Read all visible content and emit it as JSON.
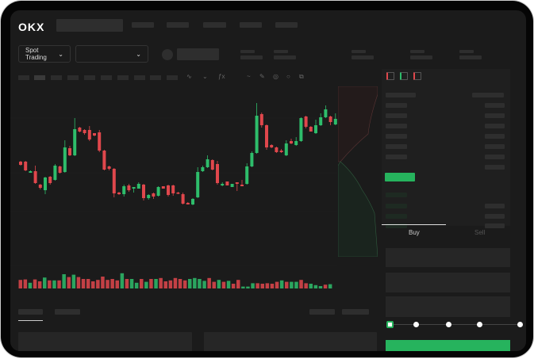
{
  "header": {
    "logo": "OKX"
  },
  "market_selector": {
    "label": "Spot Trading",
    "pair_value": ""
  },
  "chart_toolbar": {
    "icons": [
      "indicator-icon",
      "line-type-icon",
      "fx-icon",
      "trend-line-icon",
      "pencil-icon",
      "target-icon",
      "circle-icon",
      "settings-icon"
    ]
  },
  "orderbook": {
    "view_icons": [
      "both-sides-icon",
      "bids-only-icon",
      "asks-only-icon"
    ]
  },
  "trade_form": {
    "tabs": [
      {
        "label": "Buy",
        "active": true
      },
      {
        "label": "Sell",
        "active": false
      }
    ],
    "slider_percent": 0,
    "slider_stops": [
      0,
      25,
      50,
      75,
      100
    ]
  },
  "colors": {
    "up": "#2ebd6b",
    "down": "#e0474c",
    "background": "#1b1b1b",
    "buy_button": "#26b35d"
  },
  "chart_data": {
    "type": "candlestick",
    "candles_ohlc": [
      [
        167,
        168,
        162,
        163
      ],
      [
        167,
        168,
        155,
        156
      ],
      [
        153,
        156,
        153,
        155
      ],
      [
        155,
        162,
        139,
        140
      ],
      [
        138,
        139,
        132,
        134
      ],
      [
        131,
        148,
        126,
        147
      ],
      [
        148,
        149,
        138,
        140
      ],
      [
        144,
        164,
        143,
        162
      ],
      [
        161,
        162,
        152,
        153
      ],
      [
        154,
        194,
        153,
        185
      ],
      [
        184,
        187,
        174,
        175
      ],
      [
        175,
        222,
        174,
        208
      ],
      [
        210,
        211,
        204,
        205
      ],
      [
        207,
        208,
        201,
        203
      ],
      [
        207,
        212,
        193,
        195
      ],
      [
        203,
        203,
        199,
        200
      ],
      [
        204,
        207,
        179,
        181
      ],
      [
        181,
        182,
        156,
        157
      ],
      [
        161,
        162,
        156,
        158
      ],
      [
        158,
        159,
        122,
        127
      ],
      [
        128,
        129,
        125,
        126
      ],
      [
        126,
        138,
        123,
        136
      ],
      [
        137,
        139,
        129,
        131
      ],
      [
        133,
        135,
        128,
        135
      ],
      [
        133,
        141,
        133,
        139
      ],
      [
        138,
        139,
        118,
        121
      ],
      [
        121,
        126,
        119,
        125
      ],
      [
        127,
        128,
        120,
        123
      ],
      [
        124,
        136,
        123,
        135
      ],
      [
        136,
        136,
        133,
        133
      ],
      [
        137,
        138,
        123,
        125
      ],
      [
        137,
        138,
        124,
        127
      ],
      [
        128,
        129,
        126,
        127
      ],
      [
        126,
        128,
        113,
        114
      ],
      [
        115,
        116,
        113,
        113
      ],
      [
        113,
        121,
        112,
        120
      ],
      [
        122,
        160,
        121,
        154
      ],
      [
        155,
        162,
        154,
        160
      ],
      [
        160,
        175,
        159,
        170
      ],
      [
        169,
        170,
        156,
        157
      ],
      [
        164,
        168,
        138,
        140
      ],
      [
        137,
        141,
        136,
        139
      ],
      [
        142,
        142,
        137,
        137
      ],
      [
        135,
        139,
        135,
        139
      ],
      [
        141,
        141,
        130,
        139
      ],
      [
        138,
        144,
        136,
        136
      ],
      [
        139,
        165,
        138,
        161
      ],
      [
        161,
        180,
        160,
        178
      ],
      [
        178,
        241,
        177,
        225
      ],
      [
        227,
        229,
        210,
        213
      ],
      [
        213,
        214,
        182,
        185
      ],
      [
        188,
        189,
        184,
        185
      ],
      [
        185,
        186,
        178,
        179
      ],
      [
        181,
        183,
        178,
        179
      ],
      [
        175,
        194,
        174,
        190
      ],
      [
        193,
        196,
        189,
        190
      ],
      [
        188,
        198,
        187,
        193
      ],
      [
        193,
        223,
        192,
        222
      ],
      [
        224,
        225,
        209,
        211
      ],
      [
        211,
        212,
        205,
        205
      ],
      [
        203,
        220,
        202,
        213
      ],
      [
        213,
        228,
        212,
        223
      ],
      [
        223,
        238,
        222,
        233
      ],
      [
        224,
        225,
        213,
        217
      ],
      [
        214,
        228,
        213,
        221
      ]
    ],
    "volumes": [
      18,
      19,
      12,
      19,
      15,
      23,
      17,
      17,
      17,
      30,
      24,
      29,
      24,
      20,
      20,
      15,
      18,
      25,
      18,
      20,
      17,
      32,
      20,
      20,
      12,
      20,
      14,
      20,
      20,
      22,
      15,
      17,
      22,
      20,
      17,
      20,
      22,
      20,
      16,
      22,
      14,
      18,
      14,
      16,
      10,
      18,
      4,
      4,
      11,
      11,
      10,
      11,
      10,
      14,
      17,
      14,
      14,
      14,
      18,
      11,
      10,
      7,
      5,
      8,
      9
    ]
  }
}
